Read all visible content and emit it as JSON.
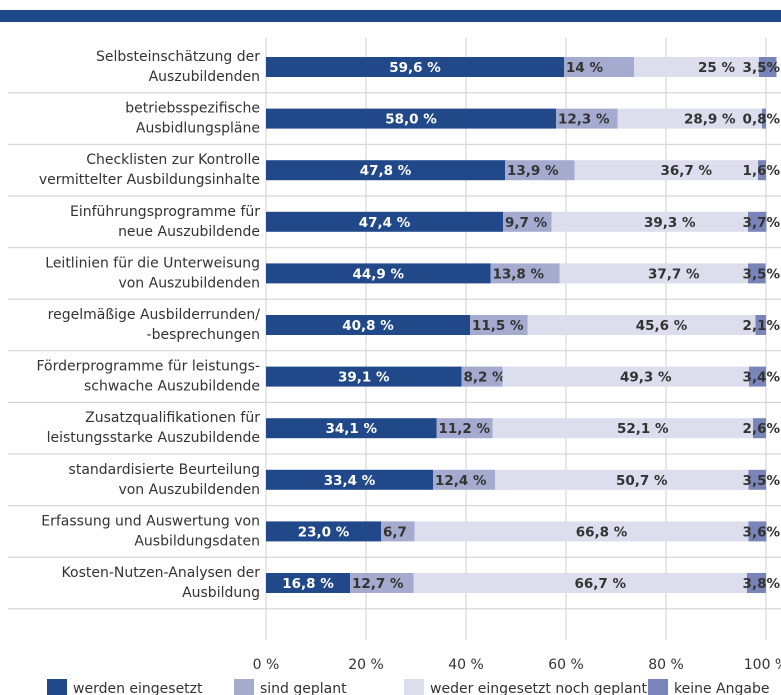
{
  "chart_data": {
    "type": "stacked-bar-horizontal",
    "categories": [
      [
        "Selbsteinschätzung der",
        "Auszubildenden"
      ],
      [
        "betriebsspezifische",
        "Ausbidlungspläne"
      ],
      [
        "Checklisten zur Kontrolle",
        "vermittelter Ausbildungsinhalte"
      ],
      [
        "Einführungsprogramme für",
        "neue Auszubildende"
      ],
      [
        "Leitlinien für die Unterweisung",
        "von Auszubildenden"
      ],
      [
        "regelmäßige Ausbilderrunden/",
        "-besprechungen"
      ],
      [
        "Förderprogramme für leistungs-",
        "schwache Auszubildende"
      ],
      [
        "Zusatzqualifikationen für",
        "leistungsstarke Auszubildende"
      ],
      [
        "standardisierte Beurteilung",
        "von Auszubildenden"
      ],
      [
        "Erfassung und Auswertung von",
        "Ausbildungsdaten"
      ],
      [
        "Kosten-Nutzen-Analysen der",
        "Ausbildung"
      ]
    ],
    "series": [
      {
        "name": "werden eingesetzt",
        "color": "#21498a",
        "values": [
          59.6,
          58.0,
          47.8,
          47.4,
          44.9,
          40.8,
          39.1,
          34.1,
          33.4,
          23.0,
          16.8
        ],
        "value_labels": [
          "59,6 %",
          "58,0 %",
          "47,8 %",
          "47,4 %",
          "44,9 %",
          "40,8 %",
          "39,1 %",
          "34,1 %",
          "33,4 %",
          "23,0 %",
          "16,8 %"
        ]
      },
      {
        "name": "sind geplant",
        "color": "#a4abcf",
        "values": [
          14,
          12.3,
          13.9,
          9.7,
          13.8,
          11.5,
          8.2,
          11.2,
          12.4,
          6.7,
          12.7
        ],
        "value_labels": [
          "14 %",
          "12,3 %",
          "13,9 %",
          "9,7 %",
          "13,8 %",
          "11,5 %",
          "8,2 %",
          "11,2 %",
          "12,4 %",
          "6,7",
          "12,7 %"
        ]
      },
      {
        "name": "weder eingesetzt noch geplant",
        "color": "#dcdeed",
        "values": [
          25,
          28.9,
          36.7,
          39.3,
          37.7,
          45.6,
          49.3,
          52.1,
          50.7,
          66.8,
          66.7
        ],
        "value_labels": [
          "25 %",
          "28,9 %",
          "36,7 %",
          "39,3 %",
          "37,7 %",
          "45,6 %",
          "49,3 %",
          "52,1 %",
          "50,7 %",
          "66,8 %",
          "66,7 %"
        ]
      },
      {
        "name": "keine Angabe",
        "color": "#7985b8",
        "values": [
          3.5,
          0.8,
          1.6,
          3.7,
          3.5,
          2.1,
          3.4,
          2.6,
          3.5,
          3.6,
          3.8
        ],
        "value_labels": [
          "3,5%",
          "0,8%",
          "1,6%",
          "3,7%",
          "3,5%",
          "2,1%",
          "3,4%",
          "2,6%",
          "3,5%",
          "3,6%",
          "3,8%"
        ]
      }
    ],
    "xlim": [
      0,
      100
    ],
    "xticks": [
      {
        "value": 0,
        "label": "0 %"
      },
      {
        "value": 20,
        "label": "20 %"
      },
      {
        "value": 40,
        "label": "40 %"
      },
      {
        "value": 60,
        "label": "60 %"
      },
      {
        "value": 80,
        "label": "80 %"
      },
      {
        "value": 100,
        "label": "100 %"
      }
    ],
    "grid": true
  }
}
